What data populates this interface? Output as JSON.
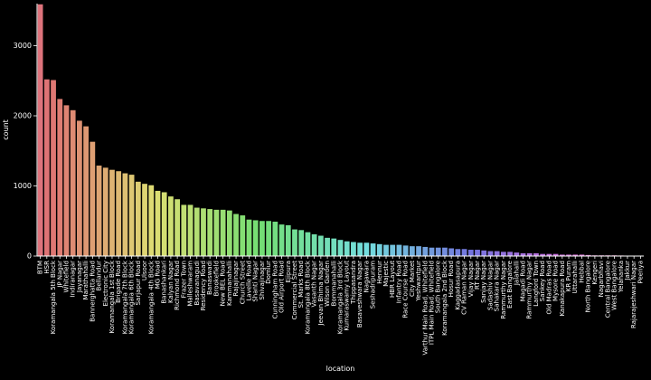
{
  "chart_data": {
    "type": "bar",
    "title": "",
    "xlabel": "location",
    "ylabel": "count",
    "ylim": [
      0,
      3600
    ],
    "yticks": [
      0,
      1000,
      2000,
      3000
    ],
    "ytick_labels": [
      "0",
      "1000",
      "2000",
      "3000"
    ],
    "grid": false,
    "legend": "none",
    "palette_start": "#e8737f",
    "palette_end": "#f079c6",
    "categories": [
      "BTM",
      "HSR",
      "Koramangala 5th Block",
      "JP Nagar",
      "Whitefield",
      "Indiranagar",
      "Jayanagar",
      "Marathahalli",
      "Bannerghatta Road",
      "Bellandur",
      "Electronic City",
      "Koramangala 1st Block",
      "Brigade Road",
      "Koramangala 7th Block",
      "Koramangala 6th Block",
      "Sarjapur Road",
      "Ulsoor",
      "Koramangala 4th Block",
      "MG Road",
      "Banashankari",
      "Kalyan Nagar",
      "Richmond Road",
      "Frazer Town",
      "Malleshwaram",
      "Basavanagudi",
      "Residency Road",
      "Banaswadi",
      "Brookefield",
      "New BEL Road",
      "Kammanahalli",
      "Rajajinagar",
      "Church Street",
      "Lavelle Road",
      "Shanti Nagar",
      "Shivajinagar",
      "Domlur",
      "Cunningham Road",
      "Old Airport Road",
      "Ejipura",
      "Commercial Street",
      "St. Marks Road",
      "Koramangala 8th Block",
      "Vasanth Nagar",
      "Jeevan Bhima Nagar",
      "Wilson Garden",
      "Bommanahalli",
      "Koramangala 3rd Block",
      "Kumaraswamy Layout",
      "Thippasandra",
      "Basaveshwara Nagar",
      "Nagawara",
      "Seshadripuram",
      "Hennur",
      "Majestic",
      "HBR Layout",
      "Infantry Road",
      "Race Course Road",
      "City Market",
      "Yeshwantpur",
      "Varthur Main Road, Whitefield",
      "ITPL Main Road, Whitefield",
      "South Bangalore",
      "Koramangala 2nd Block",
      "Hosur Road",
      "Kaggadasapura",
      "CV Raman Nagar",
      "Vijay Nagar",
      "RT Nagar",
      "Sanjay Nagar",
      "Sadashiv Nagar",
      "Sahakara Nagar",
      "Rammurthy Nagar",
      "East Bangalore",
      "Jalahalli",
      "Magadi Road",
      "Rammurthy Nagar",
      "Langford Town",
      "Sankey Road",
      "Old Madras Road",
      "Mysore Road",
      "Kanakapura Road",
      "KR Puram",
      "Uttarahalli",
      "Hebbal",
      "North Bangalore",
      "Kengeri",
      "Nagarbhavi",
      "Central Bangalore",
      "West Bangalore",
      "Yelahanka",
      "Jakkur",
      "Rajarajeshwari Nagar",
      "Peenya"
    ],
    "values": [
      3590,
      2520,
      2510,
      2240,
      2150,
      2080,
      1930,
      1850,
      1630,
      1290,
      1260,
      1230,
      1210,
      1180,
      1160,
      1060,
      1030,
      1010,
      930,
      910,
      850,
      810,
      730,
      730,
      690,
      680,
      670,
      660,
      660,
      650,
      600,
      580,
      520,
      510,
      500,
      500,
      490,
      450,
      440,
      380,
      370,
      340,
      310,
      290,
      260,
      250,
      230,
      210,
      200,
      190,
      190,
      180,
      170,
      160,
      160,
      160,
      150,
      140,
      140,
      130,
      120,
      120,
      120,
      110,
      100,
      100,
      90,
      90,
      80,
      70,
      70,
      60,
      60,
      50,
      40,
      40,
      40,
      30,
      30,
      30,
      20,
      20,
      20,
      20,
      15,
      10,
      10,
      10,
      10,
      8,
      6,
      5,
      5
    ]
  }
}
